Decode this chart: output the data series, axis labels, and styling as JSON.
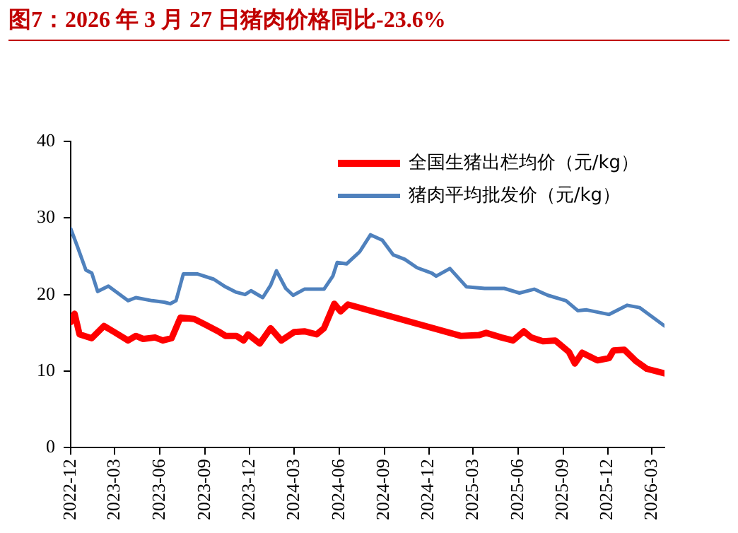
{
  "chart_data": {
    "type": "line",
    "title": "图7：2026 年 3 月 27 日猪肉价格同比-23.6%",
    "xlim": [
      "2022-12-01",
      "2026-03-27"
    ],
    "xticks": [
      "2022-12",
      "2023-03",
      "2023-06",
      "2023-09",
      "2023-12",
      "2024-03",
      "2024-06",
      "2024-09",
      "2024-12",
      "2025-03",
      "2025-06",
      "2025-09",
      "2025-12",
      "2026-03"
    ],
    "ylim": [
      0,
      40
    ],
    "yticks": [
      0,
      10,
      20,
      30,
      40
    ],
    "grid": false,
    "legend": "top right",
    "marker": "none",
    "line_style": "solid",
    "series": [
      {
        "name": "全国生猪出栏均价（元/kg）",
        "color": "#ff0000",
        "x": [
          "2022-12-01",
          "2022-12-09",
          "2022-12-19",
          "2023-01-13",
          "2023-02-07",
          "2023-02-28",
          "2023-03-28",
          "2023-04-13",
          "2023-04-28",
          "2023-05-22",
          "2023-06-07",
          "2023-06-25",
          "2023-07-13",
          "2023-08-10",
          "2023-09-04",
          "2023-09-28",
          "2023-10-13",
          "2023-11-04",
          "2023-11-19",
          "2023-11-28",
          "2023-12-22",
          "2024-01-13",
          "2024-02-04",
          "2024-03-01",
          "2024-03-22",
          "2024-04-16",
          "2024-05-01",
          "2024-05-22",
          "2024-06-04",
          "2024-06-19",
          "2025-02-04",
          "2025-03-13",
          "2025-03-28",
          "2025-04-28",
          "2025-05-22",
          "2025-06-13",
          "2025-06-28",
          "2025-07-22",
          "2025-08-16",
          "2025-09-13",
          "2025-09-25",
          "2025-10-10",
          "2025-11-10",
          "2025-12-04",
          "2025-12-13",
          "2026-01-04",
          "2026-01-28",
          "2026-02-19",
          "2026-03-27"
        ],
        "values": [
          16.4,
          17.5,
          14.8,
          14.3,
          15.9,
          15.1,
          14.0,
          14.6,
          14.2,
          14.4,
          14.0,
          14.3,
          17.0,
          16.8,
          16.0,
          15.2,
          14.6,
          14.6,
          14.0,
          14.8,
          13.6,
          15.6,
          14.0,
          15.1,
          15.2,
          14.8,
          15.6,
          18.8,
          17.8,
          18.7,
          14.6,
          14.7,
          15.0,
          14.4,
          14.0,
          15.2,
          14.4,
          13.9,
          14.0,
          12.5,
          11.0,
          12.4,
          11.4,
          11.7,
          12.7,
          12.8,
          11.3,
          10.3,
          9.7
        ]
      },
      {
        "name": "猪肉平均批发价（元/kg）",
        "color": "#4f81bd",
        "x": [
          "2022-12-01",
          "2022-12-14",
          "2023-01-01",
          "2023-01-13",
          "2023-01-25",
          "2023-02-16",
          "2023-03-07",
          "2023-03-28",
          "2023-04-13",
          "2023-05-16",
          "2023-06-10",
          "2023-06-22",
          "2023-07-04",
          "2023-07-19",
          "2023-08-16",
          "2023-09-19",
          "2023-10-13",
          "2023-11-04",
          "2023-11-22",
          "2023-12-04",
          "2023-12-28",
          "2024-01-13",
          "2024-01-25",
          "2024-02-13",
          "2024-02-28",
          "2024-03-22",
          "2024-04-10",
          "2024-05-01",
          "2024-05-19",
          "2024-05-28",
          "2024-06-16",
          "2024-07-13",
          "2024-08-04",
          "2024-08-28",
          "2024-09-19",
          "2024-10-13",
          "2024-11-07",
          "2024-12-07",
          "2024-12-16",
          "2025-01-13",
          "2025-02-16",
          "2025-03-25",
          "2025-05-04",
          "2025-06-04",
          "2025-07-04",
          "2025-08-01",
          "2025-09-07",
          "2025-10-01",
          "2025-10-19",
          "2025-12-04",
          "2026-01-10",
          "2026-02-04",
          "2026-03-27"
        ],
        "values": [
          28.6,
          26.4,
          23.2,
          22.8,
          20.4,
          21.1,
          20.2,
          19.2,
          19.6,
          19.2,
          19.0,
          18.8,
          19.2,
          22.7,
          22.7,
          22.0,
          21.0,
          20.3,
          20.0,
          20.5,
          19.6,
          21.2,
          23.1,
          20.8,
          19.9,
          20.7,
          20.7,
          20.7,
          22.4,
          24.2,
          24.0,
          25.6,
          27.8,
          27.1,
          25.2,
          24.6,
          23.5,
          22.8,
          22.4,
          23.4,
          21.0,
          20.8,
          20.8,
          20.2,
          20.7,
          19.9,
          19.2,
          17.9,
          18.0,
          17.4,
          18.6,
          18.3,
          15.9
        ]
      }
    ]
  }
}
